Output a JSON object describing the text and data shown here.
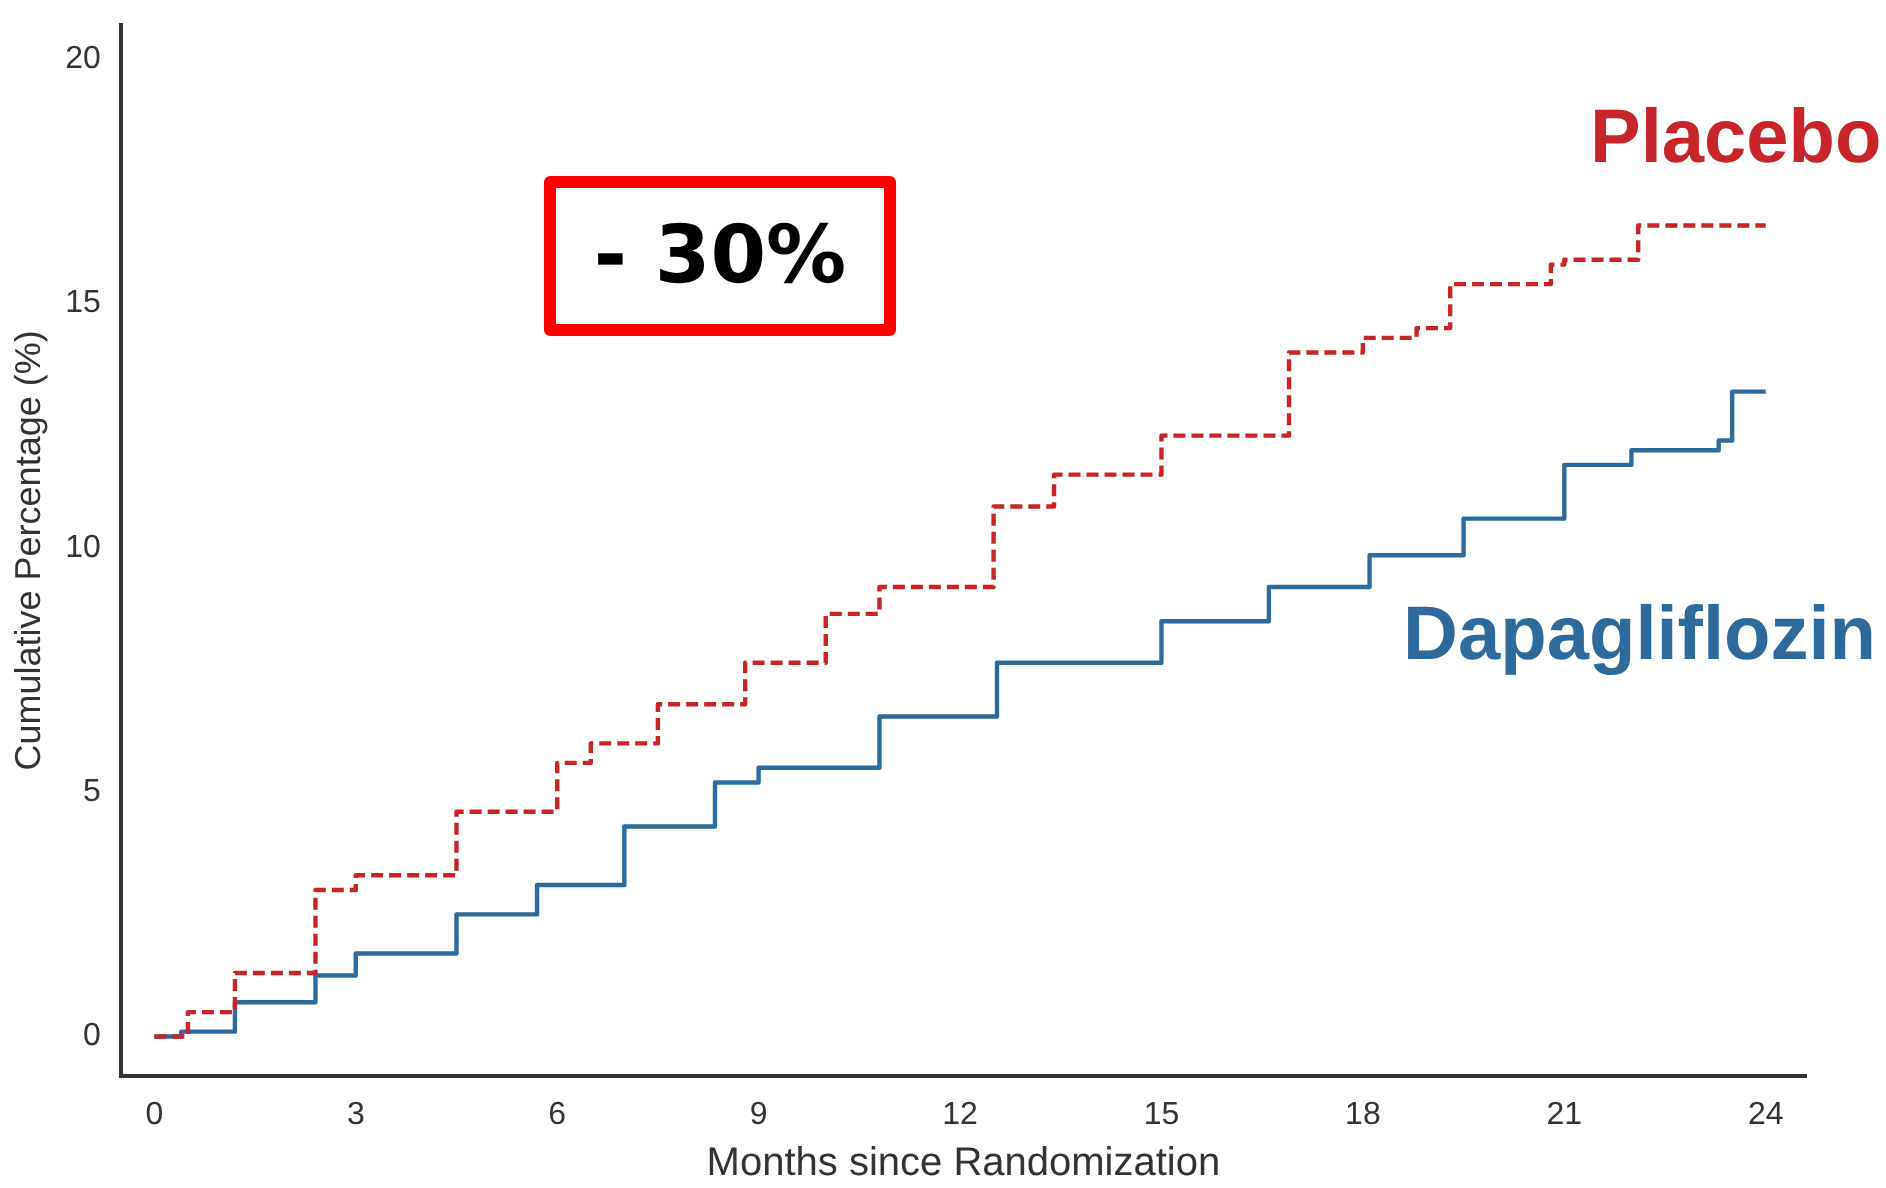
{
  "chart_data": {
    "type": "step",
    "xlabel": "Months since Randomization",
    "ylabel": "Cumulative Percentage (%)",
    "xlim": [
      -0.5,
      24.6
    ],
    "xticks": [
      0,
      3,
      6,
      9,
      12,
      15,
      18,
      21,
      24
    ],
    "ylim": [
      -0.8,
      20.7
    ],
    "yticks": [
      0,
      5,
      10,
      15,
      20
    ],
    "grid": false,
    "legend": false,
    "marker": "none",
    "annotations": [
      "- 30%"
    ],
    "series": [
      {
        "name": "Placebo",
        "color": "#c8242b",
        "line_style": "dashed",
        "x": [
          0,
          0.5,
          1.2,
          2.4,
          3,
          4.5,
          6,
          6.5,
          7.5,
          8.8,
          10,
          10.8,
          12.5,
          13.4,
          15,
          16.9,
          18,
          18.8,
          19.3,
          20.8,
          21,
          22.1,
          24
        ],
        "values": [
          0,
          0.5,
          1.3,
          3.0,
          3.3,
          4.6,
          5.6,
          6.0,
          6.8,
          7.65,
          8.65,
          9.2,
          10.85,
          11.5,
          12.3,
          14.0,
          14.3,
          14.5,
          15.4,
          15.8,
          15.9,
          16.6,
          16.6
        ]
      },
      {
        "name": "Dapagliflozin",
        "color": "#2e6b9c",
        "line_style": "solid",
        "x": [
          0,
          0.4,
          1.2,
          2.4,
          3,
          4.5,
          5.7,
          7,
          8.35,
          9,
          10.8,
          12.55,
          15,
          16.6,
          18.1,
          19.5,
          21,
          22,
          23.3,
          23.5,
          24
        ],
        "values": [
          0,
          0.1,
          0.7,
          1.25,
          1.7,
          2.5,
          3.1,
          4.3,
          5.2,
          5.5,
          6.55,
          7.65,
          8.5,
          9.2,
          9.85,
          10.6,
          11.7,
          12.0,
          12.2,
          13.2,
          13.2
        ]
      }
    ]
  }
}
